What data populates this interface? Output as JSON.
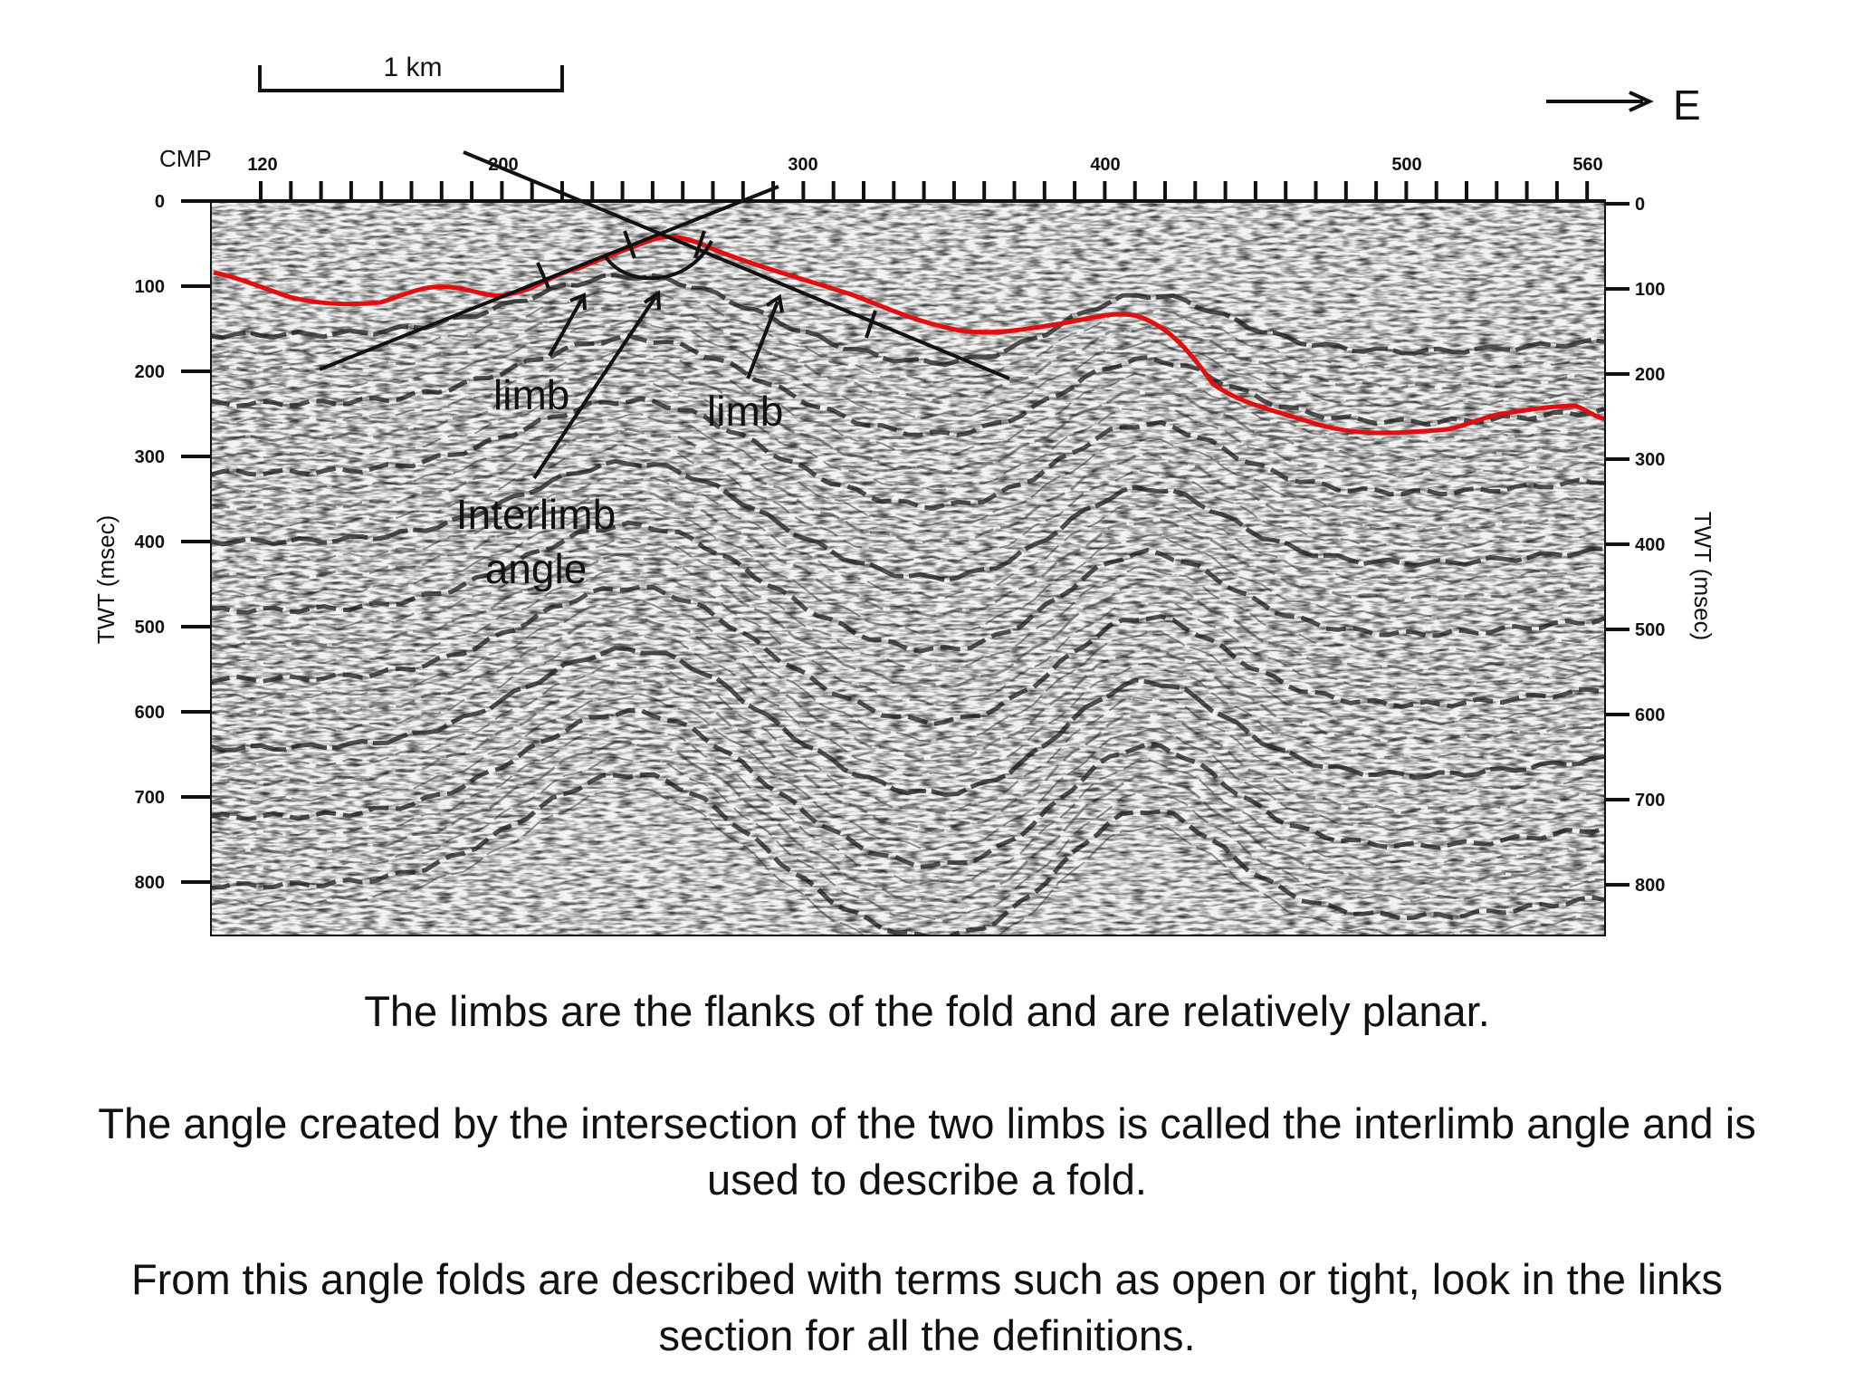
{
  "scale_bar": {
    "label": "1 km"
  },
  "direction": {
    "label": "E"
  },
  "x_axis": {
    "title": "CMP",
    "ticks": [
      "120",
      "200",
      "300",
      "400",
      "500",
      "560"
    ]
  },
  "y_axis": {
    "title": "TWT (msec)",
    "ticks": [
      "0",
      "100",
      "200",
      "300",
      "400",
      "500",
      "600",
      "700",
      "800"
    ]
  },
  "annotations": {
    "limb_left": "limb",
    "limb_right": "limb",
    "interlimb_line1": "Interlimb",
    "interlimb_line2": "angle"
  },
  "colors": {
    "seabed_horizon": "#e01010",
    "annotation": "#111111",
    "background": "#ffffff"
  },
  "captions": {
    "p1": "The limbs are the flanks of the fold and are relatively planar.",
    "p2_line1": "The angle created by the intersection of the two limbs is called the interlimb angle and is",
    "p2_line2": "used to describe a fold.",
    "p3_line1": "From this angle folds are described with terms such as open or tight, look in the links",
    "p3_line2": "section for all the definitions."
  }
}
